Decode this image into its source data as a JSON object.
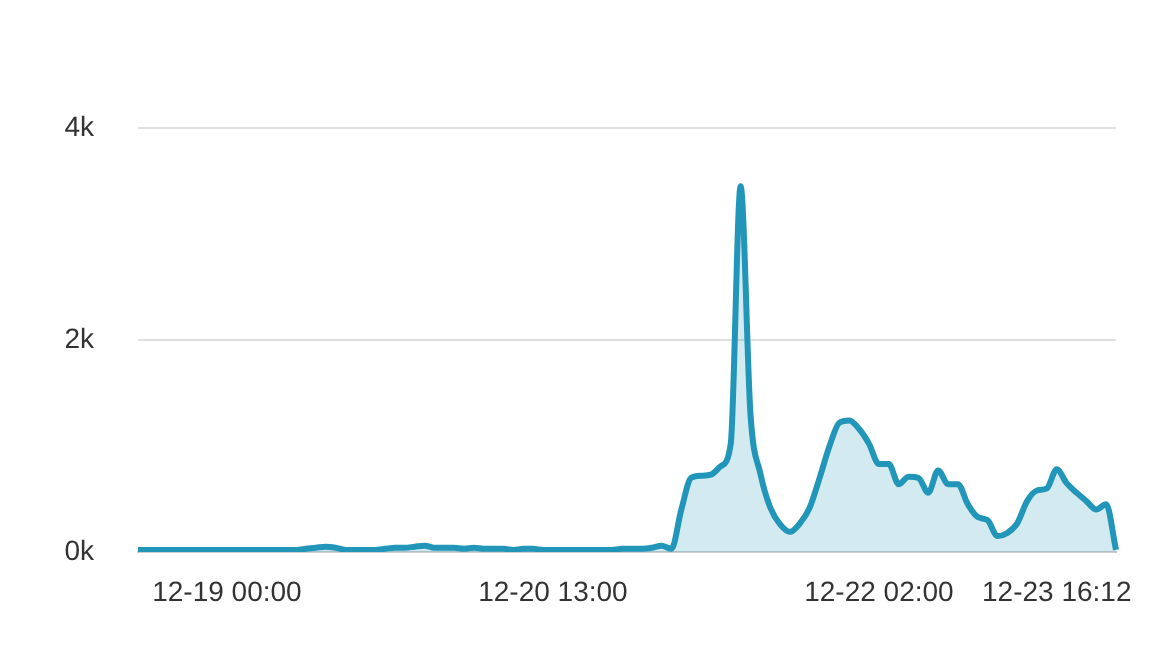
{
  "chart_data": {
    "type": "area",
    "categories": [
      null,
      null,
      null,
      null,
      null,
      null,
      null,
      null,
      null,
      "12-19 00:00",
      null,
      null,
      null,
      null,
      null,
      null,
      null,
      null,
      null,
      null,
      null,
      null,
      null,
      null,
      null,
      null,
      null,
      null,
      null,
      null,
      null,
      null,
      null,
      null,
      null,
      null,
      null,
      null,
      null,
      null,
      null,
      null,
      "12-20 13:00",
      null,
      null,
      null,
      null,
      null,
      null,
      null,
      null,
      null,
      null,
      null,
      null,
      null,
      null,
      null,
      null,
      null,
      null,
      null,
      null,
      null,
      null,
      null,
      null,
      null,
      null,
      null,
      null,
      null,
      null,
      null,
      null,
      "12-22 02:00",
      null,
      null,
      null,
      null,
      null,
      null,
      null,
      null,
      null,
      null,
      null,
      null,
      null,
      null,
      null,
      null,
      null,
      "12-23 16:12",
      null,
      null,
      null,
      null,
      null,
      null
    ],
    "values": [
      20,
      20,
      20,
      20,
      20,
      20,
      20,
      20,
      20,
      20,
      20,
      20,
      20,
      20,
      20,
      20,
      20,
      30,
      40,
      50,
      40,
      20,
      20,
      20,
      20,
      30,
      40,
      40,
      50,
      60,
      40,
      40,
      40,
      30,
      40,
      30,
      30,
      30,
      20,
      30,
      30,
      20,
      20,
      20,
      20,
      20,
      20,
      20,
      20,
      30,
      30,
      30,
      40,
      60,
      30,
      400,
      700,
      720,
      730,
      810,
      1020,
      3450,
      1300,
      740,
      420,
      260,
      190,
      270,
      420,
      700,
      1000,
      1220,
      1240,
      1160,
      1020,
      830,
      830,
      640,
      710,
      700,
      560,
      770,
      640,
      640,
      450,
      330,
      300,
      150,
      180,
      270,
      480,
      580,
      600,
      780,
      650,
      560,
      480,
      400,
      450,
      20
    ],
    "color": "#2196b8",
    "ylim": [
      0,
      4000
    ],
    "yticks": [
      {
        "value": 0,
        "label": "0k"
      },
      {
        "value": 2000,
        "label": "2k"
      },
      {
        "value": 4000,
        "label": "4k"
      }
    ],
    "grid": "y",
    "legend": false,
    "marker": "none"
  }
}
